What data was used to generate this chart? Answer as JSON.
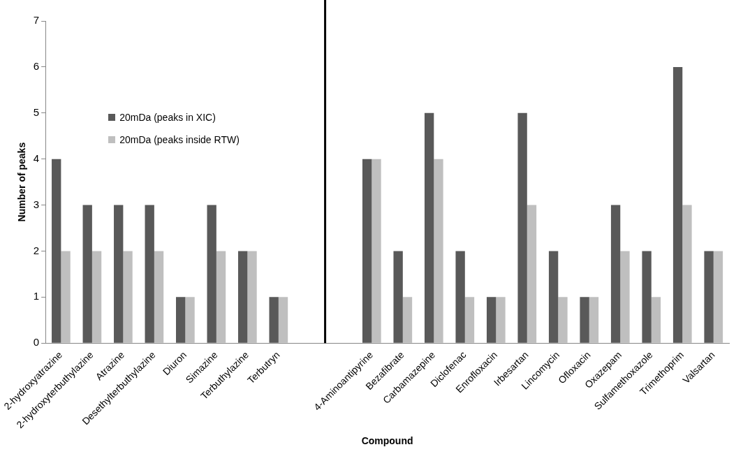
{
  "chart_data": {
    "type": "bar",
    "xlabel": "Compound",
    "ylabel": "Number of peaks",
    "categories": [
      "2-hydroxyatrazine",
      "2-hydroxyterbuthylazine",
      "Atrazine",
      "Desethylterbuthylazine",
      "Diuron",
      "Simazine",
      "Terbuthylazine",
      "Terbutryn",
      null,
      null,
      "4-Aminoantipyrine",
      "Bezafibrate",
      "Carbamazepine",
      "Diclofenac",
      "Enrofloxacin",
      "Irbesartan",
      "Lincomycin",
      "Ofloxacin",
      "Oxazepam",
      "Sulfamethoxazole",
      "Trimethoprim",
      "Valsartan"
    ],
    "series": [
      {
        "name": "20mDa (peaks in XIC)",
        "color": "#595959",
        "values": [
          4,
          3,
          3,
          3,
          1,
          3,
          2,
          1,
          null,
          null,
          4,
          2,
          5,
          2,
          1,
          5,
          2,
          1,
          3,
          2,
          6,
          2
        ]
      },
      {
        "name": "20mDa (peaks inside RTW)",
        "color": "#bfbfbf",
        "values": [
          2,
          2,
          2,
          2,
          1,
          2,
          2,
          1,
          null,
          null,
          4,
          1,
          4,
          1,
          1,
          3,
          1,
          1,
          2,
          1,
          3,
          2
        ]
      }
    ],
    "ylim": [
      0,
      7
    ],
    "yticks": [
      0,
      1,
      2,
      3,
      4,
      5,
      6,
      7
    ],
    "grid": false,
    "legend": "top left"
  }
}
